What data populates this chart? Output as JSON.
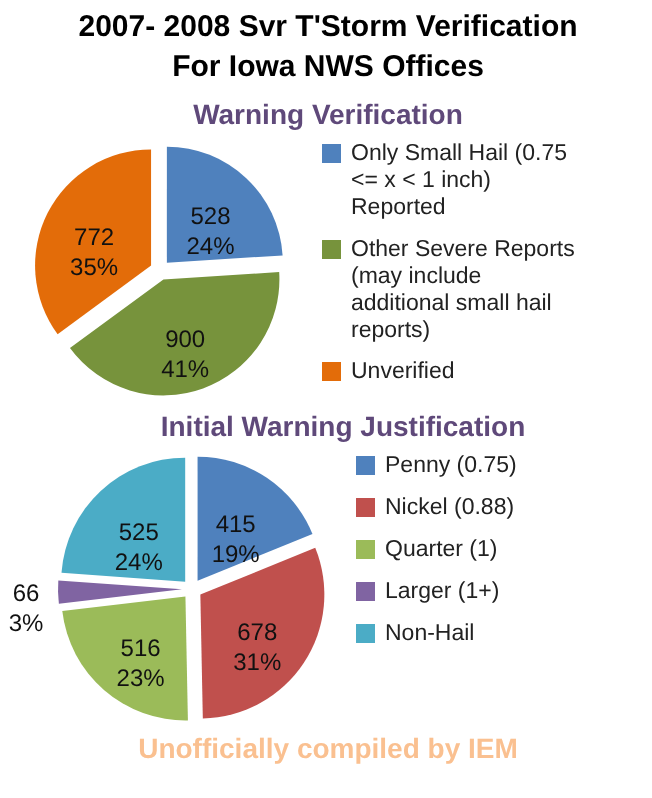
{
  "chart_data": [
    {
      "type": "pie",
      "title": "2007- 2008 Svr T'Storm Verification For Iowa NWS Offices",
      "subtitle": "Warning Verification",
      "categories": [
        "Only Small Hail (0.75 <= x < 1 inch) Reported",
        "Other Severe Reports (may include additional small hail reports)",
        "Unverified"
      ],
      "values": [
        528,
        900,
        772
      ],
      "colors": [
        "#4f81bd",
        "#77933c",
        "#e36c09"
      ],
      "value_labels": [
        "528\n24%",
        "900\n41%",
        "772\n35%"
      ],
      "legend": "right"
    },
    {
      "type": "pie",
      "title": "Initial Warning Justification",
      "categories": [
        "Penny (0.75)",
        "Nickel (0.88)",
        "Quarter (1)",
        "Larger (1+)",
        "Non-Hail"
      ],
      "values": [
        415,
        678,
        516,
        66,
        525
      ],
      "colors": [
        "#4f81bd",
        "#c0504d",
        "#9bbb59",
        "#8064a2",
        "#4bacc6"
      ],
      "value_labels": [
        "415\n19%",
        "678\n31%",
        "516\n23%",
        "66\n3%",
        "525\n24%"
      ],
      "legend": "right",
      "annotations": [
        "Unofficially compiled by IEM"
      ]
    }
  ]
}
